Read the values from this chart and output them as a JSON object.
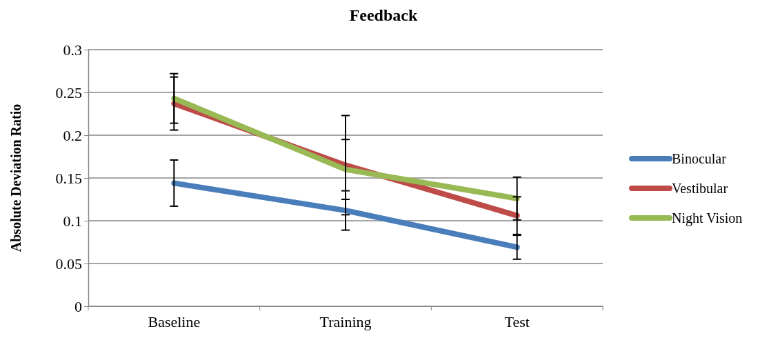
{
  "chart_data": {
    "type": "line",
    "title": "Feedback",
    "ylabel": "Absolute Deviation Ratio",
    "categories": [
      "Baseline",
      "Training",
      "Test"
    ],
    "series": [
      {
        "name": "Binocular",
        "color": "#4a7ebb",
        "values": [
          0.144,
          0.112,
          0.069
        ],
        "errors": [
          0.027,
          0.023,
          0.014
        ]
      },
      {
        "name": "Vestibular",
        "color": "#be4b48",
        "values": [
          0.237,
          0.165,
          0.106
        ],
        "errors": [
          0.031,
          0.058,
          0.022
        ]
      },
      {
        "name": "Night Vision",
        "color": "#98b954",
        "values": [
          0.243,
          0.16,
          0.126
        ],
        "errors": [
          0.029,
          0.035,
          0.025
        ]
      }
    ],
    "ylim": [
      0,
      0.3
    ],
    "yticks": [
      0,
      0.05,
      0.1,
      0.15,
      0.2,
      0.25,
      0.3
    ],
    "grid": "y",
    "legend": "right",
    "marker": "none",
    "line_style": "solid"
  }
}
